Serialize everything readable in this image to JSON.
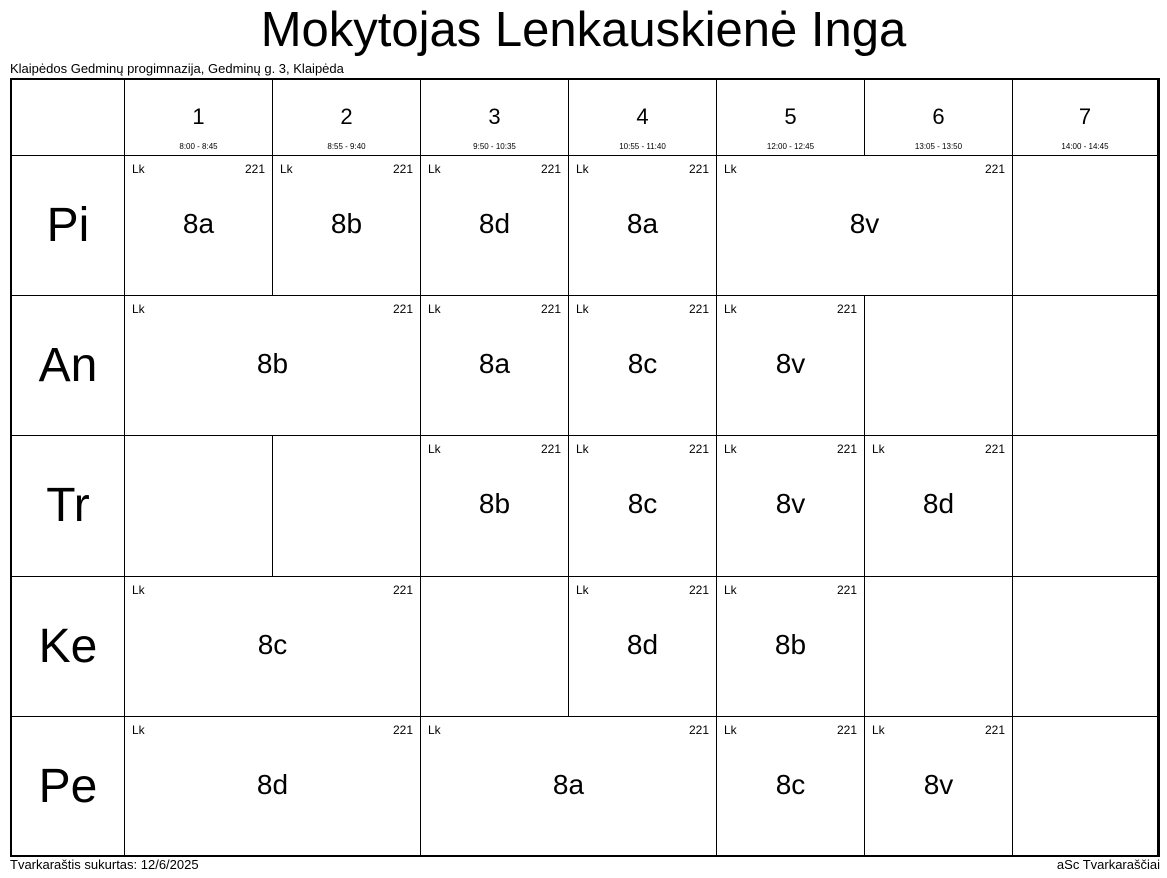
{
  "header": {
    "title": "Mokytojas Lenkauskienė Inga",
    "subtitle": "Klaipėdos Gedminų progimnazija, Gedminų g. 3, Klaipėda"
  },
  "periods": [
    {
      "num": "1",
      "time": "8:00 - 8:45"
    },
    {
      "num": "2",
      "time": "8:55 - 9:40"
    },
    {
      "num": "3",
      "time": "9:50 - 10:35"
    },
    {
      "num": "4",
      "time": "10:55 - 11:40"
    },
    {
      "num": "5",
      "time": "12:00 - 12:45"
    },
    {
      "num": "6",
      "time": "13:05 - 13:50"
    },
    {
      "num": "7",
      "time": "14:00 - 14:45"
    }
  ],
  "days": [
    {
      "label": "Pi",
      "lessons": [
        {
          "period": 1,
          "span": 1,
          "subject": "Lk",
          "room": "221",
          "class": "8a"
        },
        {
          "period": 2,
          "span": 1,
          "subject": "Lk",
          "room": "221",
          "class": "8b"
        },
        {
          "period": 3,
          "span": 1,
          "subject": "Lk",
          "room": "221",
          "class": "8d"
        },
        {
          "period": 4,
          "span": 1,
          "subject": "Lk",
          "room": "221",
          "class": "8a"
        },
        {
          "period": 5,
          "span": 2,
          "subject": "Lk",
          "room": "221",
          "class": "8v"
        },
        {
          "period": 7,
          "span": 1
        }
      ]
    },
    {
      "label": "An",
      "lessons": [
        {
          "period": 1,
          "span": 2,
          "subject": "Lk",
          "room": "221",
          "class": "8b"
        },
        {
          "period": 3,
          "span": 1,
          "subject": "Lk",
          "room": "221",
          "class": "8a"
        },
        {
          "period": 4,
          "span": 1,
          "subject": "Lk",
          "room": "221",
          "class": "8c"
        },
        {
          "period": 5,
          "span": 1,
          "subject": "Lk",
          "room": "221",
          "class": "8v"
        },
        {
          "period": 6,
          "span": 1
        },
        {
          "period": 7,
          "span": 1
        }
      ]
    },
    {
      "label": "Tr",
      "lessons": [
        {
          "period": 1,
          "span": 1
        },
        {
          "period": 2,
          "span": 1
        },
        {
          "period": 3,
          "span": 1,
          "subject": "Lk",
          "room": "221",
          "class": "8b"
        },
        {
          "period": 4,
          "span": 1,
          "subject": "Lk",
          "room": "221",
          "class": "8c"
        },
        {
          "period": 5,
          "span": 1,
          "subject": "Lk",
          "room": "221",
          "class": "8v"
        },
        {
          "period": 6,
          "span": 1,
          "subject": "Lk",
          "room": "221",
          "class": "8d"
        },
        {
          "period": 7,
          "span": 1
        }
      ]
    },
    {
      "label": "Ke",
      "lessons": [
        {
          "period": 1,
          "span": 2,
          "subject": "Lk",
          "room": "221",
          "class": "8c"
        },
        {
          "period": 3,
          "span": 1
        },
        {
          "period": 4,
          "span": 1,
          "subject": "Lk",
          "room": "221",
          "class": "8d"
        },
        {
          "period": 5,
          "span": 1,
          "subject": "Lk",
          "room": "221",
          "class": "8b"
        },
        {
          "period": 6,
          "span": 1
        },
        {
          "period": 7,
          "span": 1
        }
      ]
    },
    {
      "label": "Pe",
      "lessons": [
        {
          "period": 1,
          "span": 2,
          "subject": "Lk",
          "room": "221",
          "class": "8d"
        },
        {
          "period": 3,
          "span": 2,
          "subject": "Lk",
          "room": "221",
          "class": "8a"
        },
        {
          "period": 5,
          "span": 1,
          "subject": "Lk",
          "room": "221",
          "class": "8c"
        },
        {
          "period": 6,
          "span": 1,
          "subject": "Lk",
          "room": "221",
          "class": "8v"
        },
        {
          "period": 7,
          "span": 1
        }
      ]
    }
  ],
  "footer": {
    "created": "Tvarkaraštis sukurtas: 12/6/2025",
    "brand": "aSc Tvarkaraščiai"
  }
}
